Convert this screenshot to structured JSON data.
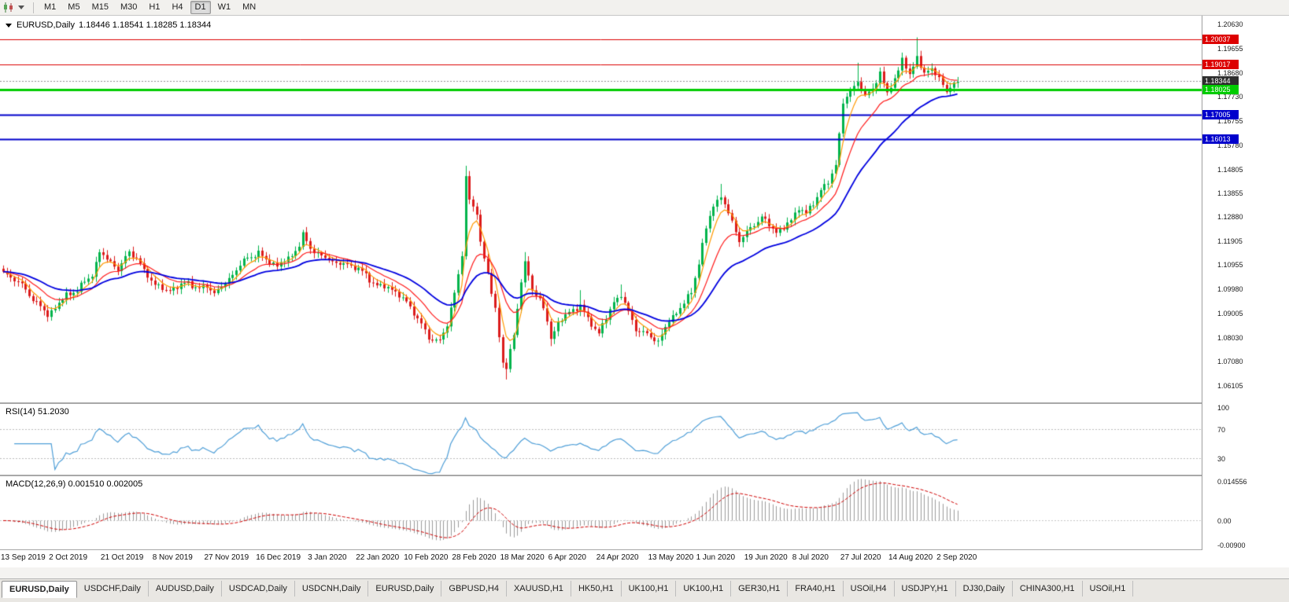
{
  "toolbar": {
    "timeframes": [
      "M1",
      "M5",
      "M15",
      "M30",
      "H1",
      "H4",
      "D1",
      "W1",
      "MN"
    ],
    "active_timeframe": "D1",
    "chart_type_icon": "candlestick-chart"
  },
  "chart_header": {
    "symbol": "EURUSD,Daily",
    "ohlc": "1.18446 1.18541 1.18285 1.18344"
  },
  "price_axis": {
    "ticks": [
      "1.20630",
      "1.19655",
      "1.18680",
      "1.17730",
      "1.16755",
      "1.15780",
      "1.14805",
      "1.13855",
      "1.12880",
      "1.11905",
      "1.10955",
      "1.09980",
      "1.09005",
      "1.08030",
      "1.07080",
      "1.06105"
    ],
    "badges": [
      {
        "label": "1.20037",
        "value": 1.20037,
        "color": "#dd0000",
        "width": 1,
        "type": "resistance"
      },
      {
        "label": "1.19017",
        "value": 1.19017,
        "color": "#dd0000",
        "width": 1,
        "type": "resistance"
      },
      {
        "label": "1.18344",
        "value": 1.18344,
        "color": "#2e2e2e",
        "width": 1,
        "type": "current-price"
      },
      {
        "label": "1.18025",
        "value": 1.18025,
        "color": "#00cc00",
        "width": 3,
        "type": "support"
      },
      {
        "label": "1.17005",
        "value": 1.17005,
        "color": "#0000cc",
        "width": 2,
        "type": "support"
      },
      {
        "label": "1.16013",
        "value": 1.16013,
        "color": "#0000cc",
        "width": 2,
        "type": "support"
      }
    ]
  },
  "rsi": {
    "label": "RSI(14) 51.2030",
    "period": 14,
    "current": 51.203,
    "levels": [
      "100",
      "70",
      "30"
    ],
    "level_values": [
      100,
      70,
      30
    ],
    "line_color": "#4f9fd8"
  },
  "macd": {
    "label": "MACD(12,26,9) 0.001510 0.002005",
    "current_macd": 0.00151,
    "current_signal": 0.002005,
    "levels": [
      "0.014556",
      "0.00",
      "-0.00900"
    ],
    "level_values": [
      0.014556,
      0,
      -0.009
    ],
    "hist_color": "#9b9b9b",
    "signal_color": "#d00000"
  },
  "time_axis": {
    "labels": [
      {
        "text": "13 Sep 2019",
        "i": 0
      },
      {
        "text": "2 Oct 2019",
        "i": 13
      },
      {
        "text": "21 Oct 2019",
        "i": 27
      },
      {
        "text": "8 Nov 2019",
        "i": 41
      },
      {
        "text": "27 Nov 2019",
        "i": 55
      },
      {
        "text": "16 Dec 2019",
        "i": 69
      },
      {
        "text": "3 Jan 2020",
        "i": 83
      },
      {
        "text": "22 Jan 2020",
        "i": 96
      },
      {
        "text": "10 Feb 2020",
        "i": 109
      },
      {
        "text": "28 Feb 2020",
        "i": 122
      },
      {
        "text": "18 Mar 2020",
        "i": 135
      },
      {
        "text": "6 Apr 2020",
        "i": 148
      },
      {
        "text": "24 Apr 2020",
        "i": 161
      },
      {
        "text": "13 May 2020",
        "i": 175
      },
      {
        "text": "1 Jun 2020",
        "i": 188
      },
      {
        "text": "19 Jun 2020",
        "i": 201
      },
      {
        "text": "8 Jul 2020",
        "i": 214
      },
      {
        "text": "27 Jul 2020",
        "i": 227
      },
      {
        "text": "14 Aug 2020",
        "i": 240
      },
      {
        "text": "2 Sep 2020",
        "i": 253
      }
    ]
  },
  "tab_bar": {
    "tabs": [
      {
        "label": "EURUSD,Daily",
        "active": true
      },
      {
        "label": "USDCHF,Daily"
      },
      {
        "label": "AUDUSD,Daily"
      },
      {
        "label": "USDCAD,Daily"
      },
      {
        "label": "USDCNH,Daily"
      },
      {
        "label": "EURUSD,Daily"
      },
      {
        "label": "GBPUSD,H4"
      },
      {
        "label": "XAUUSD,H1"
      },
      {
        "label": "HK50,H1"
      },
      {
        "label": "UK100,H1"
      },
      {
        "label": "UK100,H1"
      },
      {
        "label": "GER30,H1"
      },
      {
        "label": "FRA40,H1"
      },
      {
        "label": "USOil,H4"
      },
      {
        "label": "USDJPY,H1"
      },
      {
        "label": "DJ30,Daily"
      },
      {
        "label": "CHINA300,H1"
      },
      {
        "label": "USOil,H1"
      }
    ]
  },
  "chart_data": {
    "type": "candlestick",
    "symbol": "EURUSD",
    "timeframe": "Daily",
    "candle_count": 259,
    "y_range": [
      1.0544,
      1.2098
    ],
    "up_color": "#00b44c",
    "down_color": "#dc1c1c",
    "close_path_anchors": [
      [
        0,
        1.1065
      ],
      [
        4,
        1.103
      ],
      [
        8,
        1.096
      ],
      [
        12,
        1.0895
      ],
      [
        14,
        1.0925
      ],
      [
        17,
        1.0975
      ],
      [
        20,
        1.0995
      ],
      [
        24,
        1.106
      ],
      [
        26,
        1.1145
      ],
      [
        29,
        1.111
      ],
      [
        31,
        1.1075
      ],
      [
        34,
        1.115
      ],
      [
        36,
        1.1125
      ],
      [
        38,
        1.107
      ],
      [
        41,
        1.102
      ],
      [
        44,
        1.099
      ],
      [
        47,
        1.101
      ],
      [
        50,
        1.1025
      ],
      [
        53,
        1.1
      ],
      [
        55,
        1.101
      ],
      [
        57,
        1.0985
      ],
      [
        60,
        1.102
      ],
      [
        63,
        1.108
      ],
      [
        66,
        1.1125
      ],
      [
        69,
        1.1145
      ],
      [
        71,
        1.1115
      ],
      [
        74,
        1.1095
      ],
      [
        77,
        1.112
      ],
      [
        80,
        1.1175
      ],
      [
        81,
        1.1215
      ],
      [
        83,
        1.1165
      ],
      [
        86,
        1.113
      ],
      [
        90,
        1.1105
      ],
      [
        93,
        1.1095
      ],
      [
        96,
        1.1085
      ],
      [
        99,
        1.1035
      ],
      [
        102,
        1.101
      ],
      [
        105,
        1.1
      ],
      [
        107,
        1.0975
      ],
      [
        109,
        1.0945
      ],
      [
        112,
        1.0885
      ],
      [
        115,
        1.08
      ],
      [
        118,
        1.0795
      ],
      [
        120,
        1.085
      ],
      [
        122,
        1.099
      ],
      [
        124,
        1.1135
      ],
      [
        125,
        1.144
      ],
      [
        126,
        1.136
      ],
      [
        128,
        1.131
      ],
      [
        129,
        1.118
      ],
      [
        131,
        1.106
      ],
      [
        133,
        1.092
      ],
      [
        135,
        1.07
      ],
      [
        136,
        1.068
      ],
      [
        138,
        1.082
      ],
      [
        140,
        1.103
      ],
      [
        141,
        1.11
      ],
      [
        143,
        1.1
      ],
      [
        145,
        1.096
      ],
      [
        147,
        1.087
      ],
      [
        148,
        1.08
      ],
      [
        150,
        1.0865
      ],
      [
        153,
        1.0905
      ],
      [
        156,
        1.0935
      ],
      [
        158,
        1.0875
      ],
      [
        161,
        1.0825
      ],
      [
        163,
        1.088
      ],
      [
        165,
        1.095
      ],
      [
        167,
        1.0975
      ],
      [
        169,
        1.0905
      ],
      [
        171,
        1.084
      ],
      [
        174,
        1.0815
      ],
      [
        177,
        1.079
      ],
      [
        180,
        1.087
      ],
      [
        183,
        1.0925
      ],
      [
        186,
        1.0985
      ],
      [
        188,
        1.111
      ],
      [
        190,
        1.124
      ],
      [
        192,
        1.134
      ],
      [
        194,
        1.137
      ],
      [
        196,
        1.1305
      ],
      [
        199,
        1.1195
      ],
      [
        201,
        1.1225
      ],
      [
        203,
        1.126
      ],
      [
        205,
        1.129
      ],
      [
        207,
        1.1255
      ],
      [
        209,
        1.123
      ],
      [
        211,
        1.1245
      ],
      [
        213,
        1.1275
      ],
      [
        215,
        1.133
      ],
      [
        217,
        1.13
      ],
      [
        219,
        1.1345
      ],
      [
        221,
        1.14
      ],
      [
        223,
        1.1425
      ],
      [
        225,
        1.15
      ],
      [
        227,
        1.175
      ],
      [
        229,
        1.179
      ],
      [
        231,
        1.184
      ],
      [
        233,
        1.177
      ],
      [
        235,
        1.1805
      ],
      [
        237,
        1.187
      ],
      [
        239,
        1.1785
      ],
      [
        241,
        1.184
      ],
      [
        243,
        1.193
      ],
      [
        245,
        1.185
      ],
      [
        247,
        1.194
      ],
      [
        249,
        1.186
      ],
      [
        251,
        1.1885
      ],
      [
        253,
        1.185
      ],
      [
        255,
        1.179
      ],
      [
        257,
        1.1825
      ],
      [
        258,
        1.1834
      ]
    ],
    "wick_overrides": {
      "12": {
        "low": 1.0879
      },
      "125": {
        "high": 1.1495
      },
      "136": {
        "low": 1.0636
      },
      "141": {
        "high": 1.1148
      },
      "148": {
        "low": 1.077
      },
      "156": {
        "high": 1.0995
      },
      "167": {
        "high": 1.1018
      },
      "177": {
        "low": 1.0767
      },
      "194": {
        "high": 1.1422
      },
      "231": {
        "high": 1.1909
      },
      "247": {
        "high": 1.2011
      }
    },
    "moving_averages": [
      {
        "name": "ma-fast",
        "period": 5,
        "color": "#ff9900"
      },
      {
        "name": "ma-medium",
        "period": 13,
        "color": "#ff1a1a"
      },
      {
        "name": "ma-slow",
        "period": 30,
        "color": "#0000e0"
      }
    ]
  }
}
